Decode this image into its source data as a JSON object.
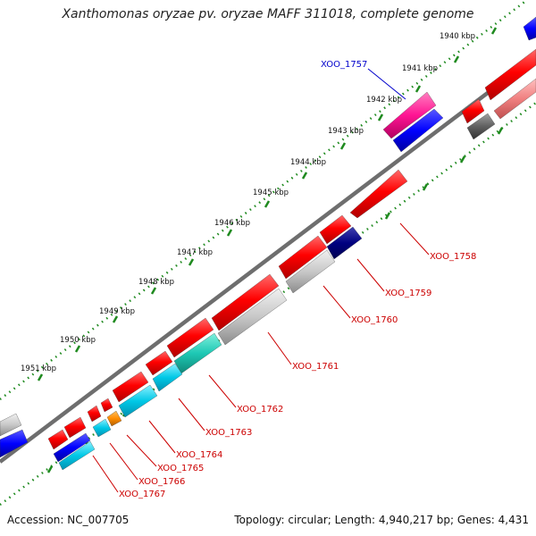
{
  "title": "Xanthomonas oryzae pv. oryzae MAFF 311018, complete genome",
  "footer": {
    "accession": "Accession: NC_007705",
    "summary": "Topology: circular; Length: 4,940,217 bp; Genes: 4,431"
  },
  "kbp_labels": [
    "1940 kbp",
    "1941 kbp",
    "1942 kbp",
    "1943 kbp",
    "1944 kbp",
    "1945 kbp",
    "1946 kbp",
    "1947 kbp",
    "1948 kbp",
    "1949 kbp",
    "1950 kbp",
    "1951 kbp"
  ],
  "gene_labels": [
    {
      "name": "XOO_1757",
      "color": "#0000cc"
    },
    {
      "name": "XOO_1758",
      "color": "#cc0000"
    },
    {
      "name": "XOO_1759",
      "color": "#cc0000"
    },
    {
      "name": "XOO_1760",
      "color": "#cc0000"
    },
    {
      "name": "XOO_1761",
      "color": "#cc0000"
    },
    {
      "name": "XOO_1762",
      "color": "#cc0000"
    },
    {
      "name": "XOO_1763",
      "color": "#cc0000"
    },
    {
      "name": "XOO_1764",
      "color": "#cc0000"
    },
    {
      "name": "XOO_1765",
      "color": "#cc0000"
    },
    {
      "name": "XOO_1766",
      "color": "#cc0000"
    },
    {
      "name": "XOO_1767",
      "color": "#cc0000"
    }
  ],
  "colors": {
    "backbone": "#8a8a8a",
    "ruler": "#1f8a1f",
    "red": "#ff0000",
    "grey": "#c8c8c8",
    "blue": "#0000ff",
    "cyan": "#00c8e6",
    "teal": "#1ec8b4",
    "magenta": "#ff1493",
    "navy": "#000080",
    "orange": "#ff8c00",
    "pink": "#f08080",
    "darkgrey": "#606060"
  }
}
